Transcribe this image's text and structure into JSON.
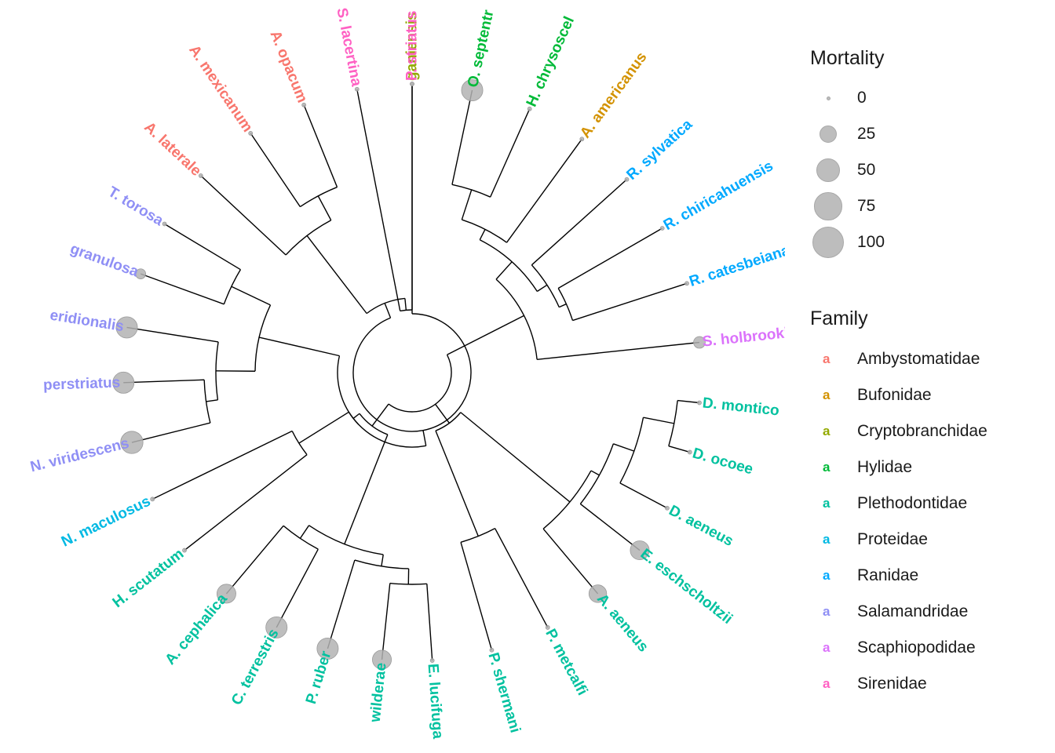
{
  "chart_data": {
    "type": "circular-phylogeny",
    "families": [
      {
        "name": "Ambystomatidae",
        "color": "#F8766D"
      },
      {
        "name": "Bufonidae",
        "color": "#D39200"
      },
      {
        "name": "Cryptobranchidae",
        "color": "#93AA00"
      },
      {
        "name": "Hylidae",
        "color": "#00BA38"
      },
      {
        "name": "Plethodontidae",
        "color": "#00C19F"
      },
      {
        "name": "Proteidae",
        "color": "#00B9E3"
      },
      {
        "name": "Ranidae",
        "color": "#00A9FF"
      },
      {
        "name": "Salamandridae",
        "color": "#8F8FF5"
      },
      {
        "name": "Scaphiopodidae",
        "color": "#DB72FB"
      },
      {
        "name": "Sirenidae",
        "color": "#FF61C3"
      }
    ],
    "tips": [
      {
        "label": "ganiensis",
        "family": "Cryptobranchidae",
        "mortality": 0
      },
      {
        "label": "O. septentr",
        "family": "Hylidae",
        "mortality": 40
      },
      {
        "label": "H. chrysoscel",
        "family": "Hylidae",
        "mortality": 0
      },
      {
        "label": "A. americanus",
        "family": "Bufonidae",
        "mortality": 0
      },
      {
        "label": "R. sylvatica",
        "family": "Ranidae",
        "mortality": 0
      },
      {
        "label": "R. chiricahuensis",
        "family": "Ranidae",
        "mortality": 0
      },
      {
        "label": "R. catesbeiana",
        "family": "Ranidae",
        "mortality": 0
      },
      {
        "label": "S. holbrooki",
        "family": "Scaphiopodidae",
        "mortality": 8
      },
      {
        "label": "D. montico",
        "family": "Plethodontidae",
        "mortality": 0
      },
      {
        "label": "D. ocoee",
        "family": "Plethodontidae",
        "mortality": 0
      },
      {
        "label": "D. aeneus",
        "family": "Plethodontidae",
        "mortality": 0
      },
      {
        "label": "E. eschscholtzii",
        "family": "Plethodontidae",
        "mortality": 30
      },
      {
        "label": "A. aeneus",
        "family": "Plethodontidae",
        "mortality": 25
      },
      {
        "label": "P. metcalfi",
        "family": "Plethodontidae",
        "mortality": 0
      },
      {
        "label": "P. shermani",
        "family": "Plethodontidae",
        "mortality": 0
      },
      {
        "label": "E. lucifuga",
        "family": "Plethodontidae",
        "mortality": 0
      },
      {
        "label": "wilderae",
        "family": "Plethodontidae",
        "mortality": 30
      },
      {
        "label": "P. ruber",
        "family": "Plethodontidae",
        "mortality": 40
      },
      {
        "label": "C. terrestris",
        "family": "Plethodontidae",
        "mortality": 40
      },
      {
        "label": "A. cephalica",
        "family": "Plethodontidae",
        "mortality": 30
      },
      {
        "label": "H. scutatum",
        "family": "Plethodontidae",
        "mortality": 0
      },
      {
        "label": "N. maculosus",
        "family": "Proteidae",
        "mortality": 0
      },
      {
        "label": "N. viridescens",
        "family": "Salamandridae",
        "mortality": 45
      },
      {
        "label": "perstriatus",
        "family": "Salamandridae",
        "mortality": 40
      },
      {
        "label": "eridionalis",
        "family": "Salamandridae",
        "mortality": 40
      },
      {
        "label": "granulosa",
        "family": "Salamandridae",
        "mortality": 5
      },
      {
        "label": "T. torosa",
        "family": "Salamandridae",
        "mortality": 0
      },
      {
        "label": "A. laterale",
        "family": "Ambystomatidae",
        "mortality": 0
      },
      {
        "label": "A. mexicanum",
        "family": "Ambystomatidae",
        "mortality": 0
      },
      {
        "label": "A. opacum",
        "family": "Ambystomatidae",
        "mortality": 0
      },
      {
        "label": "S. lacertina",
        "family": "Sirenidae",
        "mortality": 0
      },
      {
        "label": "P. striatus",
        "family": "Sirenidae",
        "mortality": 0
      }
    ]
  },
  "legend": {
    "mortality_title": "Mortality",
    "mortality_levels": [
      {
        "label": "0",
        "value": 0
      },
      {
        "label": "25",
        "value": 25
      },
      {
        "label": "50",
        "value": 50
      },
      {
        "label": "75",
        "value": 75
      },
      {
        "label": "100",
        "value": 100
      }
    ],
    "family_title": "Family",
    "family_key": "a"
  }
}
